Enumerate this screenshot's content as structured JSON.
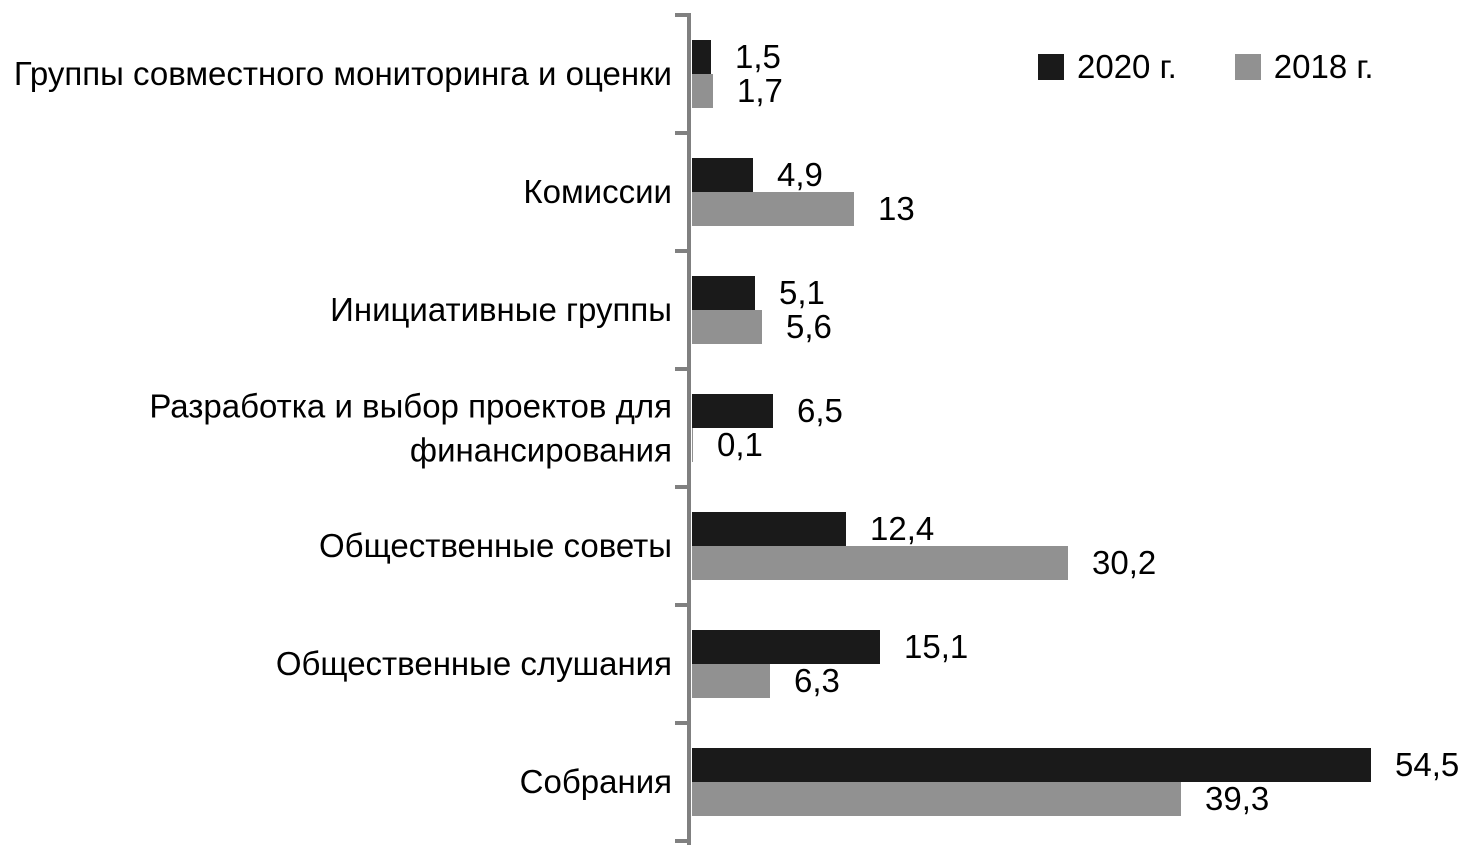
{
  "chart_data": {
    "type": "bar",
    "orientation": "horizontal",
    "title": "",
    "xlabel": "",
    "ylabel": "",
    "xlim": [
      0,
      57
    ],
    "grid": false,
    "legend_position": "top-right",
    "axis_color": "#808080",
    "background_color": "#ffffff",
    "categories": [
      "Группы совместного мониторинга и оценки",
      "Комиссии",
      "Инициативные группы",
      "Разработка и выбор проектов для финансирования",
      "Общественные советы",
      "Общественные слушания",
      "Собрания"
    ],
    "series": [
      {
        "name": "2020 г.",
        "color": "#1a1a1a",
        "values": [
          1.5,
          4.9,
          5.1,
          6.5,
          12.4,
          15.1,
          54.5
        ],
        "value_labels": [
          "1,5",
          "4,9",
          "5,1",
          "6,5",
          "12,4",
          "15,1",
          "54,5"
        ]
      },
      {
        "name": "2018 г.",
        "color": "#919191",
        "values": [
          1.7,
          13,
          5.6,
          0.1,
          30.2,
          6.3,
          39.3
        ],
        "value_labels": [
          "1,7",
          "13",
          "5,6",
          "0,1",
          "30,2",
          "6,3",
          "39,3"
        ]
      }
    ]
  }
}
